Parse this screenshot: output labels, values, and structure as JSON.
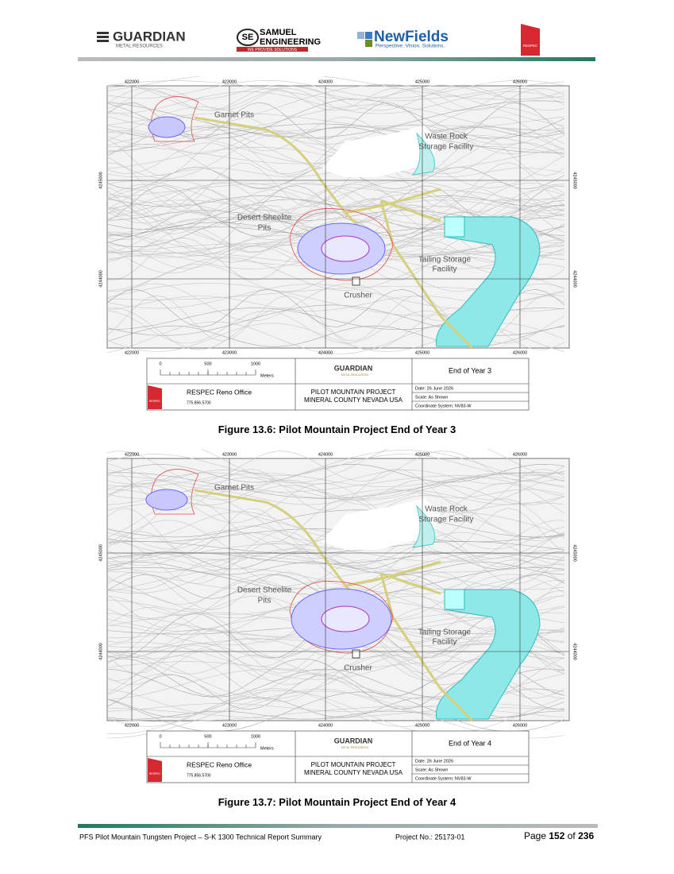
{
  "header": {
    "guardian": "GUARDIAN",
    "guardian_sub": "METAL RESOURCES",
    "se": "SE",
    "samuel": "SAMUEL",
    "engineering": "ENGINEERING",
    "samuel_sub": "WE PROVIDE SOLUTIONS",
    "newfields": "NewFields",
    "newfields_sub": "Perspective. Vision. Solutions.",
    "respec": "RESPEC"
  },
  "figures": [
    {
      "map": {
        "x_labels": [
          "422000",
          "423000",
          "424000",
          "425000",
          "426000"
        ],
        "y_labels": [
          "4245000",
          "4244000"
        ],
        "garnet": "Garnet Pits",
        "waste_1": "Waste Rock",
        "waste_2": "Storage Facility",
        "desert_1": "Desert Sheelite",
        "desert_2": "Pits",
        "tailing_1": "Tailing Storage",
        "tailing_2": "Facility",
        "crusher": "Crusher"
      },
      "title_block": {
        "scale": [
          "0",
          "500",
          "1000"
        ],
        "units": "Meters",
        "guardian": "GUARDIAN",
        "guardian_sub": "METAL RESOURCES",
        "period": "End of Year 3",
        "office": "RESPEC Reno Office",
        "phone": "775.856.5700",
        "project_1": "PILOT MOUNTAIN PROJECT",
        "project_2": "MINERAL COUNTY NEVADA USA",
        "date": "Date: 26 June 2026",
        "scale_note": "Scale: As Shown",
        "coord": "Coordinate System: NV83-W",
        "respec": "RESPEC"
      },
      "caption": "Figure 13.6: Pilot Mountain Project End of Year 3"
    },
    {
      "map": {
        "x_labels": [
          "422000",
          "423000",
          "424000",
          "425000",
          "426000"
        ],
        "y_labels": [
          "4245000",
          "4244000"
        ],
        "garnet": "Garnet Pits",
        "waste_1": "Waste Rock",
        "waste_2": "Storage Facility",
        "desert_1": "Desert Sheelite",
        "desert_2": "Pits",
        "tailing_1": "Tailing Storage",
        "tailing_2": "Facility",
        "crusher": "Crusher"
      },
      "title_block": {
        "scale": [
          "0",
          "500",
          "1000"
        ],
        "units": "Meters",
        "guardian": "GUARDIAN",
        "guardian_sub": "METAL RESOURCES",
        "period": "End of Year 4",
        "office": "RESPEC Reno Office",
        "phone": "775.856.5700",
        "project_1": "PILOT MOUNTAIN PROJECT",
        "project_2": "MINERAL COUNTY NEVADA USA",
        "date": "Date: 26 June 2026",
        "scale_note": "Scale: As Shown",
        "coord": "Coordinate System: NV83-W",
        "respec": "RESPEC"
      },
      "caption": "Figure 13.7: Pilot Mountain Project End of Year 4"
    }
  ],
  "footer": {
    "left": "PFS Pilot Mountain Tungsten Project – S-K 1300 Technical Report Summary",
    "project": "Project No.: 25173-01",
    "page_word": "Page",
    "page": "152",
    "of": "of",
    "total": "236"
  }
}
